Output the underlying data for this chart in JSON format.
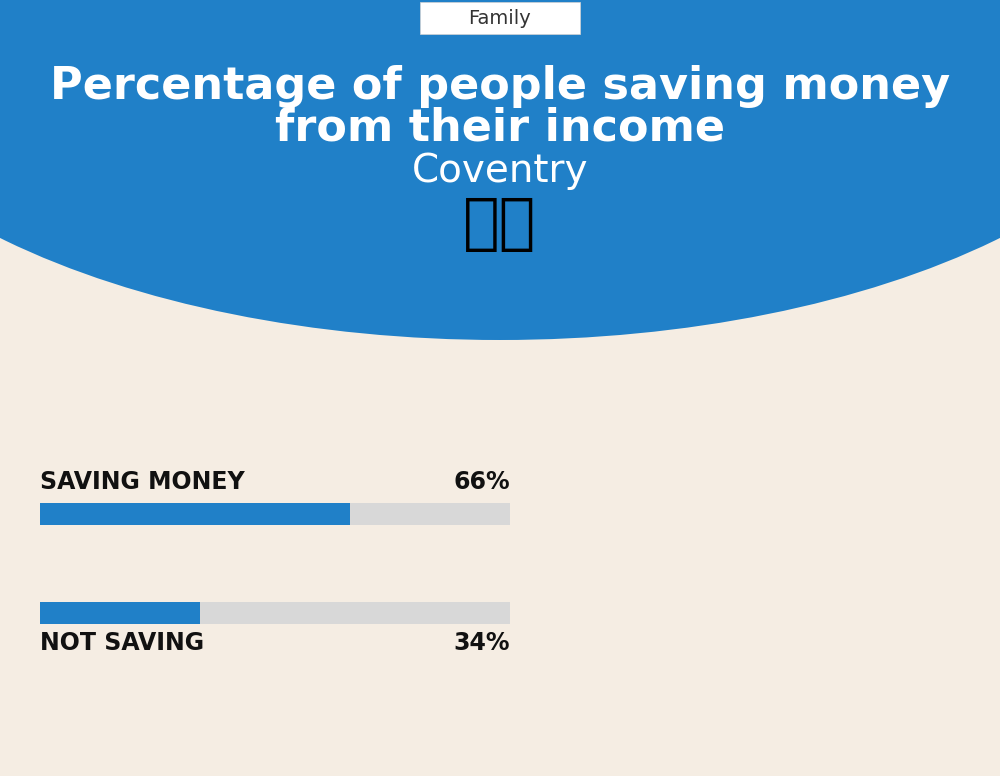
{
  "title_line1": "Percentage of people saving money",
  "title_line2": "from their income",
  "subtitle": "Coventry",
  "category_label": "Family",
  "bg_color": "#f5ede3",
  "blue_bg_color": "#2080c8",
  "bar_blue": "#2080c8",
  "bar_gray": "#d8d8d8",
  "saving_label": "SAVING MONEY",
  "saving_value": 66,
  "saving_pct_label": "66%",
  "not_saving_label": "NOT SAVING",
  "not_saving_value": 34,
  "not_saving_pct_label": "34%",
  "label_color": "#111111",
  "title_color": "#ffffff",
  "subtitle_color": "#ffffff",
  "category_color": "#333333",
  "flag_emoji": "🇬🇧"
}
